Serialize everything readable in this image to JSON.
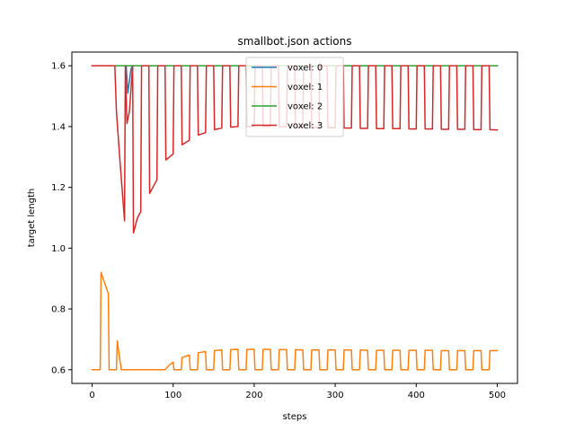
{
  "chart_data": {
    "type": "line",
    "title": "smallbot.json actions",
    "xlabel": "steps",
    "ylabel": "target length",
    "xlim": [
      -25,
      525
    ],
    "ylim": [
      0.555,
      1.645
    ],
    "xticks": [
      0,
      100,
      200,
      300,
      400,
      500
    ],
    "yticks": [
      0.6,
      0.8,
      1.0,
      1.2,
      1.4,
      1.6
    ],
    "xtick_labels": [
      "0",
      "100",
      "200",
      "300",
      "400",
      "500"
    ],
    "ytick_labels": [
      "0.6",
      "0.8",
      "1.0",
      "1.2",
      "1.4",
      "1.6"
    ],
    "grid": false,
    "legend_position": "upper center",
    "series": [
      {
        "name": "voxel: 0",
        "color": "#1f77b4",
        "points": [
          [
            0,
            1.6
          ],
          [
            40,
            1.6
          ],
          [
            42,
            1.6
          ],
          [
            44,
            1.51
          ],
          [
            48,
            1.59
          ],
          [
            50,
            1.6
          ],
          [
            500,
            1.6
          ]
        ]
      },
      {
        "name": "voxel: 1",
        "color": "#ff7f0e",
        "points": [
          [
            0,
            0.6
          ],
          [
            10,
            0.6
          ],
          [
            11,
            0.92
          ],
          [
            20,
            0.85
          ],
          [
            21,
            0.6
          ],
          [
            30,
            0.6
          ],
          [
            31,
            0.695
          ],
          [
            36,
            0.6
          ],
          [
            90,
            0.6
          ],
          [
            95,
            0.615
          ],
          [
            100,
            0.625
          ],
          [
            101,
            0.6
          ],
          [
            110,
            0.6
          ],
          [
            111,
            0.64
          ],
          [
            120,
            0.648
          ],
          [
            121,
            0.6
          ],
          [
            130,
            0.6
          ],
          [
            131,
            0.656
          ],
          [
            140,
            0.66
          ],
          [
            141,
            0.6
          ],
          [
            150,
            0.6
          ],
          [
            151,
            0.663
          ],
          [
            160,
            0.665
          ],
          [
            161,
            0.6
          ],
          [
            170,
            0.6
          ],
          [
            171,
            0.666
          ],
          [
            180,
            0.667
          ],
          [
            181,
            0.6
          ],
          [
            190,
            0.6
          ],
          [
            191,
            0.667
          ],
          [
            200,
            0.667
          ],
          [
            201,
            0.6
          ],
          [
            210,
            0.6
          ],
          [
            211,
            0.667
          ],
          [
            220,
            0.667
          ],
          [
            221,
            0.6
          ],
          [
            230,
            0.6
          ],
          [
            231,
            0.666
          ],
          [
            240,
            0.666
          ],
          [
            241,
            0.6
          ],
          [
            250,
            0.6
          ],
          [
            251,
            0.666
          ],
          [
            260,
            0.665
          ],
          [
            261,
            0.6
          ],
          [
            270,
            0.6
          ],
          [
            271,
            0.665
          ],
          [
            280,
            0.665
          ],
          [
            281,
            0.6
          ],
          [
            290,
            0.6
          ],
          [
            291,
            0.665
          ],
          [
            300,
            0.665
          ],
          [
            301,
            0.6
          ],
          [
            310,
            0.6
          ],
          [
            311,
            0.665
          ],
          [
            320,
            0.665
          ],
          [
            321,
            0.6
          ],
          [
            330,
            0.6
          ],
          [
            331,
            0.665
          ],
          [
            340,
            0.664
          ],
          [
            341,
            0.6
          ],
          [
            350,
            0.6
          ],
          [
            351,
            0.664
          ],
          [
            360,
            0.664
          ],
          [
            361,
            0.6
          ],
          [
            370,
            0.6
          ],
          [
            371,
            0.664
          ],
          [
            380,
            0.664
          ],
          [
            381,
            0.6
          ],
          [
            390,
            0.6
          ],
          [
            391,
            0.664
          ],
          [
            400,
            0.664
          ],
          [
            401,
            0.6
          ],
          [
            410,
            0.6
          ],
          [
            411,
            0.664
          ],
          [
            420,
            0.664
          ],
          [
            421,
            0.6
          ],
          [
            430,
            0.6
          ],
          [
            431,
            0.663
          ],
          [
            440,
            0.663
          ],
          [
            441,
            0.6
          ],
          [
            450,
            0.6
          ],
          [
            451,
            0.663
          ],
          [
            460,
            0.663
          ],
          [
            461,
            0.6
          ],
          [
            470,
            0.6
          ],
          [
            471,
            0.663
          ],
          [
            480,
            0.663
          ],
          [
            481,
            0.6
          ],
          [
            490,
            0.6
          ],
          [
            491,
            0.663
          ],
          [
            500,
            0.663
          ]
        ]
      },
      {
        "name": "voxel: 2",
        "color": "#2ca02c",
        "points": [
          [
            0,
            1.6
          ],
          [
            500,
            1.6
          ]
        ]
      },
      {
        "name": "voxel: 3",
        "color": "#d62728",
        "points": [
          [
            0,
            1.6
          ],
          [
            28,
            1.6
          ],
          [
            30,
            1.45
          ],
          [
            34,
            1.3
          ],
          [
            40,
            1.09
          ],
          [
            41,
            1.6
          ],
          [
            43,
            1.41
          ],
          [
            46,
            1.45
          ],
          [
            50,
            1.6
          ],
          [
            51,
            1.05
          ],
          [
            56,
            1.1
          ],
          [
            60,
            1.12
          ],
          [
            61,
            1.6
          ],
          [
            70,
            1.6
          ],
          [
            71,
            1.18
          ],
          [
            80,
            1.225
          ],
          [
            81,
            1.6
          ],
          [
            90,
            1.6
          ],
          [
            91,
            1.29
          ],
          [
            100,
            1.31
          ],
          [
            101,
            1.6
          ],
          [
            110,
            1.6
          ],
          [
            111,
            1.34
          ],
          [
            120,
            1.355
          ],
          [
            121,
            1.6
          ],
          [
            130,
            1.6
          ],
          [
            131,
            1.372
          ],
          [
            140,
            1.38
          ],
          [
            141,
            1.6
          ],
          [
            150,
            1.6
          ],
          [
            151,
            1.39
          ],
          [
            160,
            1.395
          ],
          [
            161,
            1.6
          ],
          [
            170,
            1.6
          ],
          [
            171,
            1.398
          ],
          [
            180,
            1.4
          ],
          [
            181,
            1.6
          ],
          [
            190,
            1.6
          ],
          [
            191,
            1.4
          ],
          [
            200,
            1.4
          ],
          [
            201,
            1.6
          ],
          [
            210,
            1.6
          ],
          [
            211,
            1.4
          ],
          [
            220,
            1.4
          ],
          [
            221,
            1.6
          ],
          [
            230,
            1.6
          ],
          [
            231,
            1.4
          ],
          [
            240,
            1.4
          ],
          [
            241,
            1.6
          ],
          [
            250,
            1.6
          ],
          [
            251,
            1.398
          ],
          [
            260,
            1.398
          ],
          [
            261,
            1.6
          ],
          [
            270,
            1.6
          ],
          [
            271,
            1.397
          ],
          [
            280,
            1.397
          ],
          [
            281,
            1.6
          ],
          [
            290,
            1.6
          ],
          [
            291,
            1.396
          ],
          [
            300,
            1.396
          ],
          [
            301,
            1.6
          ],
          [
            310,
            1.6
          ],
          [
            311,
            1.395
          ],
          [
            320,
            1.395
          ],
          [
            321,
            1.6
          ],
          [
            330,
            1.6
          ],
          [
            331,
            1.394
          ],
          [
            340,
            1.394
          ],
          [
            341,
            1.6
          ],
          [
            350,
            1.6
          ],
          [
            351,
            1.393
          ],
          [
            360,
            1.393
          ],
          [
            361,
            1.6
          ],
          [
            370,
            1.6
          ],
          [
            371,
            1.393
          ],
          [
            380,
            1.393
          ],
          [
            381,
            1.6
          ],
          [
            390,
            1.6
          ],
          [
            391,
            1.392
          ],
          [
            400,
            1.392
          ],
          [
            401,
            1.6
          ],
          [
            410,
            1.6
          ],
          [
            411,
            1.392
          ],
          [
            420,
            1.392
          ],
          [
            421,
            1.6
          ],
          [
            430,
            1.6
          ],
          [
            431,
            1.391
          ],
          [
            440,
            1.391
          ],
          [
            441,
            1.6
          ],
          [
            450,
            1.6
          ],
          [
            451,
            1.391
          ],
          [
            460,
            1.391
          ],
          [
            461,
            1.6
          ],
          [
            470,
            1.6
          ],
          [
            471,
            1.39
          ],
          [
            480,
            1.39
          ],
          [
            481,
            1.6
          ],
          [
            490,
            1.6
          ],
          [
            491,
            1.39
          ],
          [
            500,
            1.389
          ]
        ]
      }
    ]
  }
}
